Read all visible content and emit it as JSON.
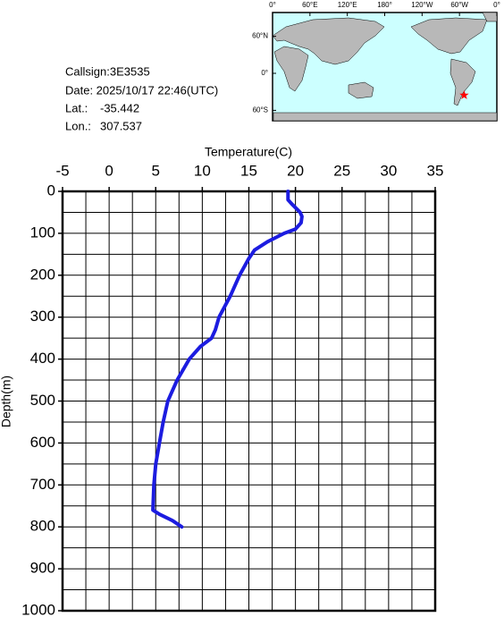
{
  "info": {
    "callsign": "Callsign:3E3535",
    "date": "Date:  2025/10/17 22:46(UTC)",
    "lat_label": "Lat.:",
    "lat": -35.442,
    "lon_label": "Lon.:",
    "lon": 307.537
  },
  "map": {
    "lon_ticks": [
      {
        "value": 0,
        "label": "0°"
      },
      {
        "value": 60,
        "label": "60°E"
      },
      {
        "value": 120,
        "label": "120°E"
      },
      {
        "value": 180,
        "label": "180°"
      },
      {
        "value": 240,
        "label": "120°W"
      },
      {
        "value": 300,
        "label": "60°W"
      },
      {
        "value": 360,
        "label": "0°"
      }
    ],
    "lat_ticks": [
      {
        "value": 60,
        "label": "60°N"
      },
      {
        "value": 0,
        "label": "0°"
      },
      {
        "value": -60,
        "label": "60°S"
      }
    ],
    "marker_color": "#ff0000"
  },
  "chart_data": {
    "type": "line",
    "xlabel": "Temperature(C)",
    "ylabel": "Depth(m)",
    "xlim": [
      -5,
      35
    ],
    "ylim": [
      0,
      1000
    ],
    "xticks": [
      -5,
      0,
      5,
      10,
      15,
      20,
      25,
      30,
      35
    ],
    "yticks": [
      0,
      100,
      200,
      300,
      400,
      500,
      600,
      700,
      800,
      900,
      1000
    ],
    "xgrid": [
      -2.5,
      0,
      2.5,
      5,
      7.5,
      10,
      12.5,
      15,
      17.5,
      20,
      22.5,
      25,
      27.5,
      30,
      32.5
    ],
    "ygrid": [
      50,
      100,
      150,
      200,
      250,
      300,
      350,
      400,
      450,
      500,
      550,
      600,
      650,
      700,
      750,
      800,
      850,
      900,
      950
    ],
    "y_inverted": true,
    "series": [
      {
        "color": "#1c1ce0",
        "x": [
          19.2,
          19.2,
          19.6,
          20.5,
          20.7,
          20.6,
          20.0,
          18.8,
          17.0,
          15.6,
          15.0,
          14.0,
          13.0,
          11.8,
          11.4,
          11.0,
          9.8,
          8.6,
          7.3,
          6.3,
          5.8,
          5.4,
          5.0,
          4.8,
          4.7,
          5.4,
          6.8,
          7.8
        ],
        "y": [
          0,
          20,
          30,
          50,
          60,
          75,
          90,
          100,
          120,
          140,
          160,
          200,
          250,
          300,
          330,
          350,
          370,
          400,
          450,
          500,
          550,
          600,
          650,
          700,
          760,
          770,
          785,
          800
        ]
      }
    ]
  }
}
